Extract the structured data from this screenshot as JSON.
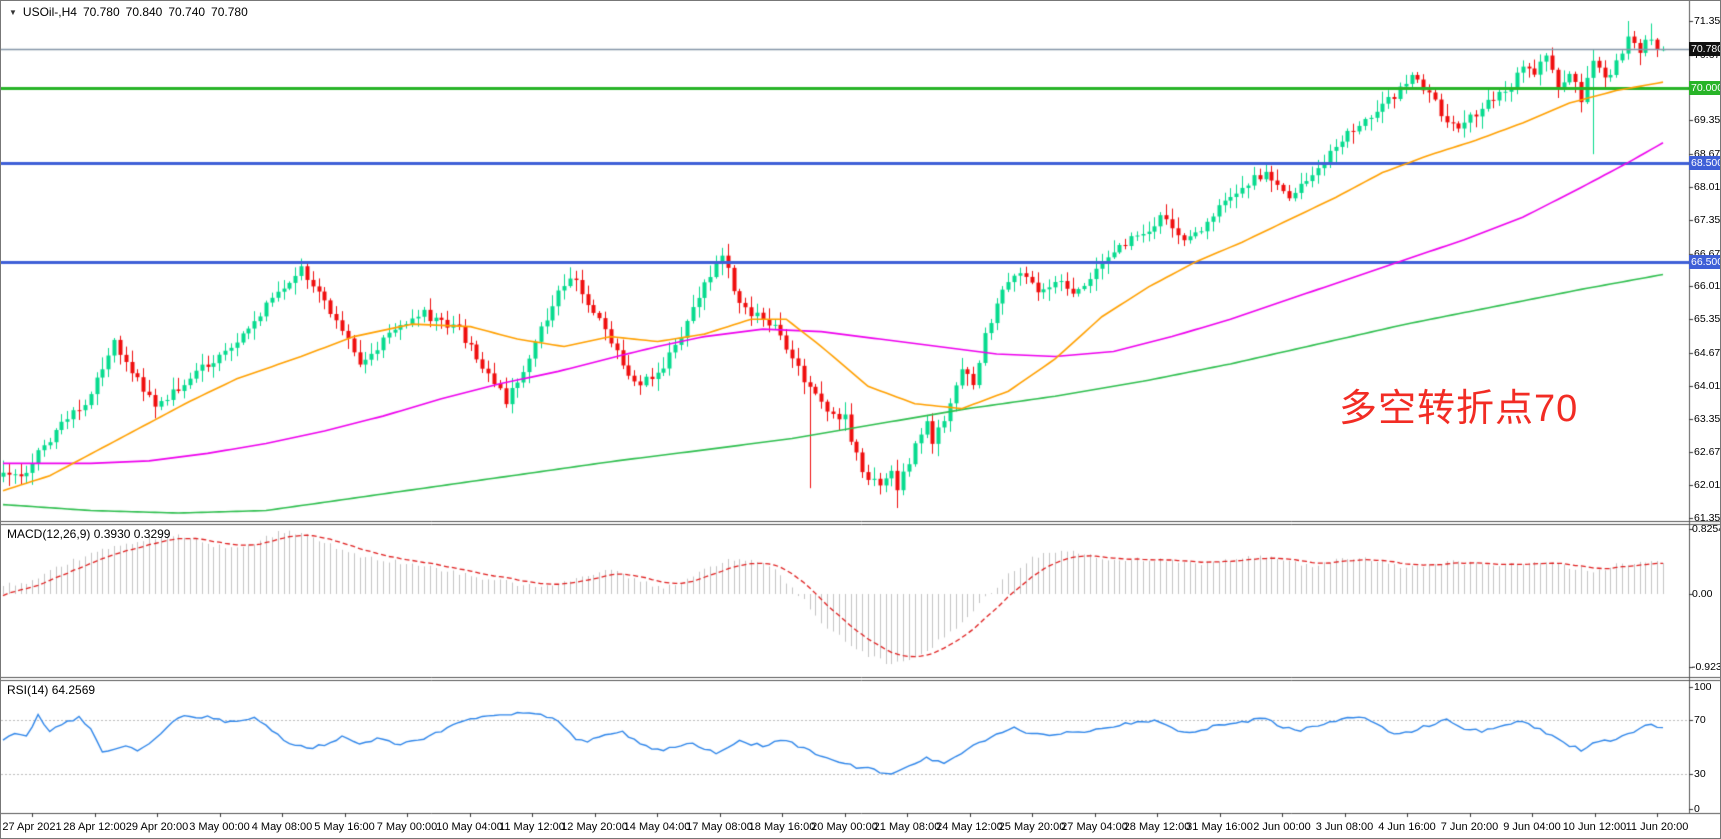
{
  "window": {
    "symbol": "USOil-,H4",
    "open": "70.780",
    "high": "70.840",
    "low": "70.740",
    "close": "70.780"
  },
  "icons": {
    "symbol_dropdown": "▼"
  },
  "colors": {
    "background": "#ffffff",
    "bull_candle": "#06db8e",
    "bear_candle": "#ef0e0e",
    "ma_fast": "#ffa000",
    "ma_mid": "#ee00ee",
    "ma_slow": "#2fbf4f",
    "level_green": "#28b428",
    "level_blue": "#3e5fd7",
    "current_price_line": "#8496a8",
    "current_badge": "#101010",
    "macd_bars": "#c3c3c3",
    "macd_signal": "#e02020",
    "rsi_line": "#2f86ea",
    "rsi_levels": "#bbbbbb",
    "axis_text": "#000000",
    "border": "#555555",
    "annotation_red": "#f22c24"
  },
  "chart_data": {
    "type": "candlestick",
    "symbol": "USOil-",
    "timeframe": "H4",
    "candle_count": 285,
    "ylim": [
      61.35,
      71.35
    ],
    "price_axis_labels": [
      "71.350",
      "70.670",
      "70.000",
      "69.350",
      "68.670",
      "68.010",
      "67.350",
      "66.670",
      "66.010",
      "65.350",
      "64.670",
      "64.010",
      "63.350",
      "62.670",
      "62.010",
      "61.350"
    ],
    "price_axis_values": [
      71.35,
      70.67,
      70.0,
      69.35,
      68.67,
      68.01,
      67.35,
      66.67,
      66.01,
      65.35,
      64.67,
      64.01,
      63.35,
      62.67,
      62.01,
      61.35
    ],
    "levels": [
      {
        "name": "current-price",
        "price": 70.78,
        "label": "70.780",
        "line_color": "#8496a8",
        "badge_color": "#101010",
        "line_width": 1.5
      },
      {
        "name": "resistance-70",
        "price": 70.0,
        "label": "70.000",
        "line_color": "#28b428",
        "badge_color": "#28b428",
        "line_width": 3
      },
      {
        "name": "support-68_5",
        "price": 68.5,
        "label": "68.500",
        "line_color": "#3e5fd7",
        "badge_color": "#3e5fd7",
        "line_width": 3
      },
      {
        "name": "support-66_5",
        "price": 66.5,
        "label": "66.500",
        "line_color": "#3e5fd7",
        "badge_color": "#3e5fd7",
        "line_width": 3
      }
    ],
    "time_labels": [
      "27 Apr 2021",
      "28 Apr 12:00",
      "29 Apr 20:00",
      "3 May 00:00",
      "4 May 08:00",
      "5 May 16:00",
      "7 May 00:00",
      "10 May 04:00",
      "11 May 12:00",
      "12 May 20:00",
      "14 May 04:00",
      "17 May 08:00",
      "18 May 16:00",
      "20 May 00:00",
      "21 May 08:00",
      "24 May 12:00",
      "25 May 20:00",
      "27 May 04:00",
      "28 May 12:00",
      "31 May 16:00",
      "2 Jun 00:00",
      "3 Jun 08:00",
      "4 Jun 16:00",
      "7 Jun 20:00",
      "9 Jun 04:00",
      "10 Jun 12:00",
      "11 Jun 20:00"
    ],
    "close_path": [
      [
        0,
        62.35
      ],
      [
        3,
        62.15
      ],
      [
        8,
        62.95
      ],
      [
        14,
        63.7
      ],
      [
        19,
        64.85
      ],
      [
        22,
        64.35
      ],
      [
        26,
        63.55
      ],
      [
        32,
        64.15
      ],
      [
        40,
        64.95
      ],
      [
        46,
        65.75
      ],
      [
        51,
        66.35
      ],
      [
        55,
        65.75
      ],
      [
        61,
        64.5
      ],
      [
        66,
        65.0
      ],
      [
        72,
        65.45
      ],
      [
        78,
        65.15
      ],
      [
        82,
        64.4
      ],
      [
        86,
        63.7
      ],
      [
        90,
        64.6
      ],
      [
        95,
        65.9
      ],
      [
        97,
        66.25
      ],
      [
        101,
        65.5
      ],
      [
        104,
        64.9
      ],
      [
        108,
        64.05
      ],
      [
        112,
        64.2
      ],
      [
        116,
        65.0
      ],
      [
        120,
        66.1
      ],
      [
        123,
        66.6
      ],
      [
        126,
        65.7
      ],
      [
        129,
        65.4
      ],
      [
        132,
        65.2
      ],
      [
        135,
        64.6
      ],
      [
        138,
        63.9
      ],
      [
        141,
        63.5
      ],
      [
        144,
        63.35
      ],
      [
        147,
        62.2
      ],
      [
        150,
        62.0
      ],
      [
        152,
        62.25
      ],
      [
        153,
        61.9
      ],
      [
        155,
        62.5
      ],
      [
        158,
        63.3
      ],
      [
        159,
        62.9
      ],
      [
        162,
        63.6
      ],
      [
        164,
        64.3
      ],
      [
        166,
        64.1
      ],
      [
        168,
        65.0
      ],
      [
        171,
        65.9
      ],
      [
        174,
        66.3
      ],
      [
        177,
        65.9
      ],
      [
        180,
        66.15
      ],
      [
        183,
        65.85
      ],
      [
        187,
        66.35
      ],
      [
        191,
        66.8
      ],
      [
        195,
        67.1
      ],
      [
        198,
        67.4
      ],
      [
        202,
        66.9
      ],
      [
        206,
        67.3
      ],
      [
        210,
        67.85
      ],
      [
        214,
        68.2
      ],
      [
        216,
        68.3
      ],
      [
        220,
        67.8
      ],
      [
        224,
        68.2
      ],
      [
        228,
        68.9
      ],
      [
        231,
        69.2
      ],
      [
        233,
        69.4
      ],
      [
        236,
        69.6
      ],
      [
        239,
        70.0
      ],
      [
        241,
        70.2
      ],
      [
        244,
        69.9
      ],
      [
        247,
        69.3
      ],
      [
        249,
        69.15
      ],
      [
        252,
        69.5
      ],
      [
        255,
        69.8
      ],
      [
        258,
        70.1
      ],
      [
        260,
        70.45
      ],
      [
        262,
        70.3
      ],
      [
        264,
        70.6
      ],
      [
        266,
        70.0
      ],
      [
        268,
        70.3
      ],
      [
        270,
        69.8
      ],
      [
        272,
        70.5
      ],
      [
        274,
        70.2
      ],
      [
        276,
        70.5
      ],
      [
        278,
        71.05
      ],
      [
        280,
        70.75
      ],
      [
        282,
        71.05
      ],
      [
        284,
        70.78
      ]
    ],
    "last_candle": {
      "open": 70.78,
      "high": 70.84,
      "low": 70.74,
      "close": 70.78
    },
    "notable_wicks": [
      {
        "i": 138,
        "low": 61.95
      },
      {
        "i": 153,
        "low": 61.55
      },
      {
        "i": 272,
        "low": 68.67
      },
      {
        "i": 278,
        "high": 71.35
      },
      {
        "i": 282,
        "high": 71.3
      }
    ],
    "ma_fast_path": [
      [
        0,
        61.9
      ],
      [
        8,
        62.2
      ],
      [
        16,
        62.7
      ],
      [
        24,
        63.2
      ],
      [
        32,
        63.7
      ],
      [
        40,
        64.15
      ],
      [
        51,
        64.6
      ],
      [
        60,
        65.0
      ],
      [
        70,
        65.25
      ],
      [
        80,
        65.2
      ],
      [
        88,
        64.95
      ],
      [
        96,
        64.8
      ],
      [
        104,
        65.0
      ],
      [
        112,
        64.9
      ],
      [
        120,
        65.05
      ],
      [
        128,
        65.35
      ],
      [
        134,
        65.35
      ],
      [
        140,
        64.8
      ],
      [
        148,
        64.0
      ],
      [
        156,
        63.65
      ],
      [
        164,
        63.55
      ],
      [
        172,
        63.9
      ],
      [
        180,
        64.55
      ],
      [
        188,
        65.4
      ],
      [
        196,
        66.0
      ],
      [
        204,
        66.5
      ],
      [
        212,
        66.9
      ],
      [
        220,
        67.35
      ],
      [
        228,
        67.8
      ],
      [
        236,
        68.3
      ],
      [
        244,
        68.65
      ],
      [
        252,
        68.95
      ],
      [
        260,
        69.3
      ],
      [
        268,
        69.7
      ],
      [
        276,
        69.95
      ],
      [
        284,
        70.12
      ]
    ],
    "ma_mid_path": [
      [
        0,
        62.45
      ],
      [
        15,
        62.45
      ],
      [
        25,
        62.5
      ],
      [
        35,
        62.65
      ],
      [
        45,
        62.85
      ],
      [
        55,
        63.1
      ],
      [
        65,
        63.4
      ],
      [
        75,
        63.75
      ],
      [
        85,
        64.05
      ],
      [
        95,
        64.3
      ],
      [
        105,
        64.6
      ],
      [
        112,
        64.8
      ],
      [
        120,
        65.0
      ],
      [
        130,
        65.15
      ],
      [
        140,
        65.1
      ],
      [
        150,
        64.95
      ],
      [
        160,
        64.8
      ],
      [
        170,
        64.65
      ],
      [
        180,
        64.6
      ],
      [
        190,
        64.7
      ],
      [
        200,
        65.0
      ],
      [
        210,
        65.35
      ],
      [
        220,
        65.75
      ],
      [
        230,
        66.15
      ],
      [
        240,
        66.55
      ],
      [
        250,
        66.95
      ],
      [
        260,
        67.4
      ],
      [
        270,
        68.0
      ],
      [
        278,
        68.5
      ],
      [
        284,
        68.9
      ]
    ],
    "ma_slow_path": [
      [
        0,
        61.62
      ],
      [
        15,
        61.5
      ],
      [
        30,
        61.45
      ],
      [
        45,
        61.5
      ],
      [
        60,
        61.75
      ],
      [
        75,
        62.0
      ],
      [
        90,
        62.25
      ],
      [
        105,
        62.5
      ],
      [
        120,
        62.72
      ],
      [
        135,
        62.95
      ],
      [
        150,
        63.25
      ],
      [
        165,
        63.55
      ],
      [
        180,
        63.8
      ],
      [
        195,
        64.1
      ],
      [
        210,
        64.45
      ],
      [
        225,
        64.85
      ],
      [
        240,
        65.25
      ],
      [
        255,
        65.6
      ],
      [
        270,
        65.95
      ],
      [
        284,
        66.25
      ]
    ],
    "macd": {
      "label": "MACD(12,26,9)",
      "value_main": "0.3930",
      "value_signal": "0.3299",
      "axis_labels": [
        "0.8254",
        "0.00",
        "-0.9234"
      ],
      "axis_values": [
        0.8254,
        0.0,
        -0.9234
      ],
      "histogram_path": [
        [
          0,
          0.12
        ],
        [
          4,
          0.15
        ],
        [
          8,
          0.3
        ],
        [
          12,
          0.42
        ],
        [
          16,
          0.52
        ],
        [
          20,
          0.62
        ],
        [
          24,
          0.7
        ],
        [
          28,
          0.75
        ],
        [
          32,
          0.72
        ],
        [
          36,
          0.62
        ],
        [
          40,
          0.6
        ],
        [
          44,
          0.68
        ],
        [
          48,
          0.8
        ],
        [
          52,
          0.74
        ],
        [
          56,
          0.62
        ],
        [
          60,
          0.5
        ],
        [
          64,
          0.45
        ],
        [
          68,
          0.4
        ],
        [
          72,
          0.35
        ],
        [
          76,
          0.3
        ],
        [
          80,
          0.22
        ],
        [
          84,
          0.18
        ],
        [
          88,
          0.12
        ],
        [
          92,
          0.1
        ],
        [
          96,
          0.15
        ],
        [
          100,
          0.22
        ],
        [
          104,
          0.3
        ],
        [
          108,
          0.2
        ],
        [
          112,
          0.08
        ],
        [
          116,
          0.15
        ],
        [
          120,
          0.3
        ],
        [
          124,
          0.42
        ],
        [
          128,
          0.45
        ],
        [
          132,
          0.3
        ],
        [
          136,
          0.0
        ],
        [
          140,
          -0.35
        ],
        [
          144,
          -0.6
        ],
        [
          148,
          -0.78
        ],
        [
          152,
          -0.9
        ],
        [
          156,
          -0.82
        ],
        [
          160,
          -0.6
        ],
        [
          164,
          -0.35
        ],
        [
          168,
          -0.05
        ],
        [
          172,
          0.25
        ],
        [
          176,
          0.45
        ],
        [
          180,
          0.55
        ],
        [
          184,
          0.52
        ],
        [
          188,
          0.45
        ],
        [
          192,
          0.42
        ],
        [
          196,
          0.45
        ],
        [
          200,
          0.43
        ],
        [
          204,
          0.38
        ],
        [
          208,
          0.42
        ],
        [
          212,
          0.46
        ],
        [
          216,
          0.48
        ],
        [
          220,
          0.4
        ],
        [
          224,
          0.36
        ],
        [
          228,
          0.42
        ],
        [
          232,
          0.46
        ],
        [
          236,
          0.4
        ],
        [
          240,
          0.34
        ],
        [
          244,
          0.36
        ],
        [
          248,
          0.42
        ],
        [
          252,
          0.38
        ],
        [
          256,
          0.35
        ],
        [
          260,
          0.38
        ],
        [
          264,
          0.42
        ],
        [
          268,
          0.34
        ],
        [
          272,
          0.3
        ],
        [
          276,
          0.36
        ],
        [
          280,
          0.42
        ],
        [
          284,
          0.39
        ]
      ]
    },
    "rsi": {
      "label": "RSI(14)",
      "value": "64.2569",
      "axis_labels": [
        "100",
        "70",
        "30",
        "0"
      ],
      "axis_values": [
        100,
        70,
        30,
        0
      ],
      "level_lines": [
        70,
        30
      ],
      "path": [
        [
          0,
          56
        ],
        [
          2,
          61
        ],
        [
          4,
          58
        ],
        [
          6,
          73
        ],
        [
          8,
          61
        ],
        [
          11,
          69
        ],
        [
          13,
          72
        ],
        [
          15,
          63
        ],
        [
          17,
          47
        ],
        [
          19,
          48
        ],
        [
          21,
          51
        ],
        [
          23,
          48
        ],
        [
          26,
          56
        ],
        [
          29,
          69
        ],
        [
          31,
          74
        ],
        [
          33,
          71
        ],
        [
          35,
          73
        ],
        [
          38,
          68
        ],
        [
          40,
          70
        ],
        [
          43,
          71
        ],
        [
          46,
          62
        ],
        [
          49,
          53
        ],
        [
          52,
          49
        ],
        [
          55,
          52
        ],
        [
          58,
          57
        ],
        [
          61,
          53
        ],
        [
          64,
          56
        ],
        [
          68,
          52
        ],
        [
          71,
          55
        ],
        [
          74,
          60
        ],
        [
          77,
          66
        ],
        [
          80,
          70
        ],
        [
          83,
          72
        ],
        [
          86,
          74
        ],
        [
          89,
          76
        ],
        [
          92,
          75
        ],
        [
          95,
          68
        ],
        [
          98,
          56
        ],
        [
          100,
          54
        ],
        [
          103,
          60
        ],
        [
          106,
          61
        ],
        [
          110,
          50
        ],
        [
          113,
          48
        ],
        [
          117,
          53
        ],
        [
          120,
          49
        ],
        [
          122,
          45
        ],
        [
          126,
          54
        ],
        [
          130,
          51
        ],
        [
          134,
          55
        ],
        [
          138,
          47
        ],
        [
          141,
          42
        ],
        [
          144,
          37
        ],
        [
          148,
          34
        ],
        [
          152,
          30
        ],
        [
          155,
          36
        ],
        [
          158,
          42
        ],
        [
          161,
          39
        ],
        [
          164,
          45
        ],
        [
          167,
          53
        ],
        [
          170,
          60
        ],
        [
          173,
          64
        ],
        [
          176,
          60
        ],
        [
          179,
          58
        ],
        [
          182,
          62
        ],
        [
          185,
          60
        ],
        [
          188,
          64
        ],
        [
          191,
          66
        ],
        [
          194,
          68
        ],
        [
          197,
          70
        ],
        [
          200,
          63
        ],
        [
          203,
          60
        ],
        [
          206,
          64
        ],
        [
          210,
          67
        ],
        [
          214,
          70
        ],
        [
          216,
          71
        ],
        [
          219,
          64
        ],
        [
          222,
          62
        ],
        [
          226,
          67
        ],
        [
          229,
          71
        ],
        [
          232,
          73
        ],
        [
          235,
          66
        ],
        [
          238,
          60
        ],
        [
          241,
          62
        ],
        [
          244,
          66
        ],
        [
          247,
          70
        ],
        [
          250,
          63
        ],
        [
          253,
          62
        ],
        [
          256,
          66
        ],
        [
          259,
          69
        ],
        [
          262,
          65
        ],
        [
          265,
          58
        ],
        [
          268,
          51
        ],
        [
          270,
          48
        ],
        [
          272,
          52
        ],
        [
          275,
          55
        ],
        [
          278,
          59
        ],
        [
          280,
          64
        ],
        [
          282,
          66
        ],
        [
          284,
          64.26
        ]
      ]
    },
    "annotation": {
      "text": "多空转折点70",
      "color": "#f22c24"
    }
  }
}
